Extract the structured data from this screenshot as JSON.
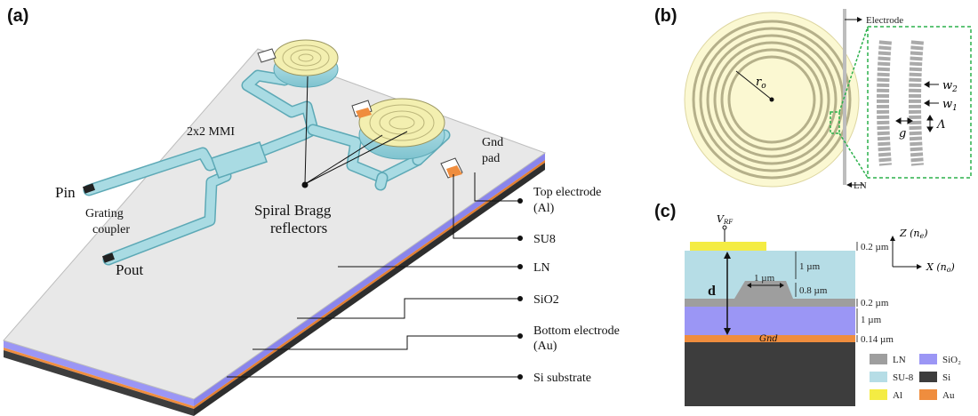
{
  "panels": {
    "a": {
      "tag": "(a)",
      "labels": {
        "mmi": "2x2 MMI",
        "pin": "Pin",
        "grating": "Grating\ncoupler",
        "grating_line1": "Grating",
        "grating_line2": "coupler",
        "pout": "Pout",
        "spiral_line1": "Spiral Bragg",
        "spiral_line2": "reflectors",
        "gnd_line1": "Gnd",
        "gnd_line2": "pad"
      },
      "callouts": {
        "top_electrode_line1": "Top electrode",
        "top_electrode_line2": "(Al)",
        "su8": "SU8",
        "ln": "LN",
        "sio2": "SiO2",
        "bottom_electrode_line1": "Bottom electrode",
        "bottom_electrode_line2": "(Au)",
        "si_substrate": "Si substrate"
      }
    },
    "b": {
      "tag": "(b)",
      "electrode": "Electrode",
      "ln": "LN",
      "r0": "r",
      "r0_sub": "o",
      "w2": "w",
      "w2_sub": "2",
      "w1": "w",
      "w1_sub": "1",
      "g": "g",
      "lambda": "Λ"
    },
    "c": {
      "tag": "(c)",
      "vrf": "V",
      "vrf_sub": "RF",
      "d": "d",
      "gnd": "Gnd",
      "dim_02_top": "0.2 µm",
      "dim_1um_su8": "1 µm",
      "dim_1um_rib": "1 µm",
      "dim_08": "0.8 µm",
      "dim_02_mid": "0.2 µm",
      "dim_1um_sio2": "1 µm",
      "dim_014": "0.14 µm",
      "axis_z": "Z (n",
      "axis_z_sub": "e",
      "axis_x": "X (n",
      "axis_x_sub": "o",
      "legend": [
        {
          "label": "LN",
          "color": "#9e9e9e"
        },
        {
          "label": "SiO₂",
          "color": "#9b96f5"
        },
        {
          "label": "SU-8",
          "color": "#b6dde6"
        },
        {
          "label": "Si",
          "color": "#3d3d3d"
        },
        {
          "label": "Al",
          "color": "#f4ec43"
        },
        {
          "label": "Au",
          "color": "#ef8d3e"
        }
      ]
    }
  },
  "colors": {
    "chip_top": "#e7e7e7",
    "sio2": "#9b96f5",
    "au": "#ef8d3e",
    "si": "#3d3d3d",
    "waveguide": "#a9dbe3",
    "reflector": "#f3efb0",
    "circle_fill": "#fbf8d2",
    "spiral": "#c9c49a"
  }
}
